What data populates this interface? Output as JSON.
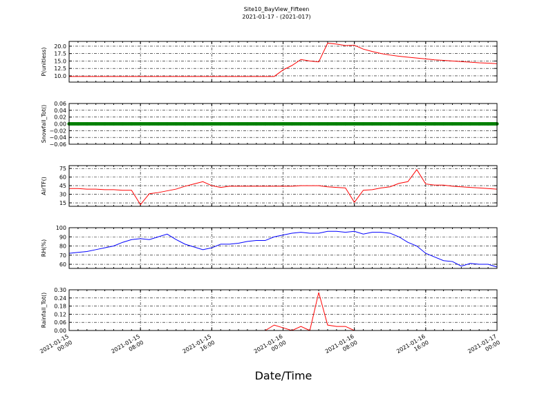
{
  "title": "Site10_BayView_Fifteen",
  "subtitle": "2021-01-17 - (2021-017)",
  "xlabel": "Date/Time",
  "x": [
    "2021-01-15 00:00",
    "2021-01-15 01:00",
    "2021-01-15 02:00",
    "2021-01-15 03:00",
    "2021-01-15 04:00",
    "2021-01-15 05:00",
    "2021-01-15 06:00",
    "2021-01-15 07:00",
    "2021-01-15 08:00",
    "2021-01-15 09:00",
    "2021-01-15 10:00",
    "2021-01-15 11:00",
    "2021-01-15 12:00",
    "2021-01-15 13:00",
    "2021-01-15 14:00",
    "2021-01-15 15:00",
    "2021-01-15 16:00",
    "2021-01-15 17:00",
    "2021-01-15 18:00",
    "2021-01-15 19:00",
    "2021-01-15 20:00",
    "2021-01-15 21:00",
    "2021-01-15 22:00",
    "2021-01-15 23:00",
    "2021-01-16 00:00",
    "2021-01-16 01:00",
    "2021-01-16 02:00",
    "2021-01-16 03:00",
    "2021-01-16 04:00",
    "2021-01-16 05:00",
    "2021-01-16 06:00",
    "2021-01-16 07:00",
    "2021-01-16 08:00",
    "2021-01-16 09:00",
    "2021-01-16 10:00",
    "2021-01-16 11:00",
    "2021-01-16 12:00",
    "2021-01-16 13:00",
    "2021-01-16 14:00",
    "2021-01-16 15:00",
    "2021-01-16 16:00",
    "2021-01-16 17:00",
    "2021-01-16 18:00",
    "2021-01-16 19:00",
    "2021-01-16 20:00",
    "2021-01-16 21:00",
    "2021-01-16 22:00",
    "2021-01-16 23:00",
    "2021-01-17 00:00"
  ],
  "xlim": [
    "2021-01-15 00:00",
    "2021-01-17 00:00"
  ],
  "xticks": [
    "2021-01-15 00:00",
    "2021-01-15 08:00",
    "2021-01-15 16:00",
    "2021-01-16 00:00",
    "2021-01-16 08:00",
    "2021-01-16 16:00",
    "2021-01-17 00:00"
  ],
  "grid": true,
  "chart_data": [
    {
      "type": "line",
      "ylabel": "P(unitless)",
      "color": "#ff0000",
      "ylim": [
        7.9,
        21.6
      ],
      "yticks": [
        {
          "value": 10,
          "label": "10.0"
        },
        12.5,
        {
          "value": 15,
          "label": "15.0"
        },
        17.5,
        {
          "value": 20,
          "label": "20.0"
        }
      ],
      "values": [
        9.8,
        9.8,
        9.8,
        9.8,
        9.8,
        9.8,
        9.8,
        9.8,
        9.8,
        9.8,
        9.8,
        9.8,
        9.8,
        9.8,
        9.8,
        9.8,
        9.8,
        9.8,
        9.8,
        9.8,
        9.8,
        9.8,
        9.8,
        9.8,
        12.0,
        13.5,
        15.5,
        15.0,
        14.7,
        21.0,
        20.7,
        20.2,
        20.3,
        19.0,
        18.2,
        17.5,
        17.0,
        16.6,
        16.3,
        16.0,
        15.7,
        15.4,
        15.2,
        15.0,
        14.8,
        14.6,
        14.4,
        14.3,
        14.1
      ]
    },
    {
      "type": "line",
      "markers": true,
      "ylabel": "Snowfall_Tot()",
      "color": "#008000",
      "ylim": [
        -0.06,
        0.06
      ],
      "yticks": [
        {
          "value": -0.06,
          "label": "−0.06"
        },
        {
          "value": -0.04,
          "label": "−0.04"
        },
        {
          "value": -0.02,
          "label": "−0.02"
        },
        {
          "value": 0,
          "label": "0.00"
        },
        {
          "value": 0.02,
          "label": "0.02"
        },
        {
          "value": 0.04,
          "label": "0.04"
        },
        {
          "value": 0.06,
          "label": "0.06"
        }
      ],
      "values": [
        0,
        0,
        0,
        0,
        0,
        0,
        0,
        0,
        0,
        0,
        0,
        0,
        0,
        0,
        0,
        0,
        0,
        0,
        0,
        0,
        0,
        0,
        0,
        0,
        0,
        0,
        0,
        0,
        0,
        0,
        0,
        0,
        0,
        0,
        0,
        0,
        0,
        0,
        0,
        0,
        0,
        0,
        0,
        0,
        0,
        0,
        0,
        0,
        0
      ]
    },
    {
      "type": "line",
      "ylabel": "AirTF()",
      "color": "#ff0000",
      "ylim": [
        9,
        80
      ],
      "yticks": [
        15,
        30,
        45,
        60,
        75
      ],
      "values": [
        40,
        40,
        39,
        39,
        38,
        38,
        37,
        37,
        12,
        31,
        33,
        36,
        39,
        44,
        48,
        52,
        45,
        42,
        44,
        44,
        44,
        44,
        44,
        44,
        44,
        44,
        45,
        45,
        45,
        43,
        42,
        41,
        16,
        37,
        38,
        41,
        43,
        49,
        52,
        73,
        48,
        46,
        46,
        44,
        43,
        42,
        41,
        40,
        39
      ]
    },
    {
      "type": "line",
      "ylabel": "RH(%)",
      "color": "#0000ff",
      "ylim": [
        55.5,
        100
      ],
      "yticks": [
        60,
        70,
        80,
        90,
        100
      ],
      "values": [
        72,
        73,
        74,
        76,
        78,
        80,
        84,
        87,
        88,
        87,
        90,
        93,
        87,
        82,
        79,
        76,
        78,
        82,
        82,
        83,
        85,
        86,
        86,
        90,
        92,
        94,
        95,
        94,
        94,
        96,
        96,
        95,
        96,
        93,
        95,
        95,
        94,
        90,
        84,
        80,
        72,
        68,
        64,
        63,
        58,
        61,
        60,
        60,
        57
      ]
    },
    {
      "type": "line",
      "ylabel": "Rainfall_Tot()",
      "color": "#ff0000",
      "ylim": [
        0,
        0.3
      ],
      "yticks": [
        {
          "value": 0,
          "label": "0.00"
        },
        0.06,
        0.12,
        0.18,
        0.24,
        {
          "value": 0.3,
          "label": "0.30"
        }
      ],
      "values": [
        0,
        0,
        0,
        0,
        0,
        0,
        0,
        0,
        0,
        0,
        0,
        0,
        0,
        0,
        0,
        0,
        0,
        0,
        0,
        0,
        0,
        0,
        0,
        0.04,
        0.02,
        0,
        0.03,
        0,
        0.28,
        0.04,
        0.03,
        0.03,
        0,
        0,
        0,
        0,
        0,
        0,
        0,
        0,
        0,
        0,
        0,
        0,
        0,
        0,
        0,
        0,
        0
      ]
    }
  ]
}
